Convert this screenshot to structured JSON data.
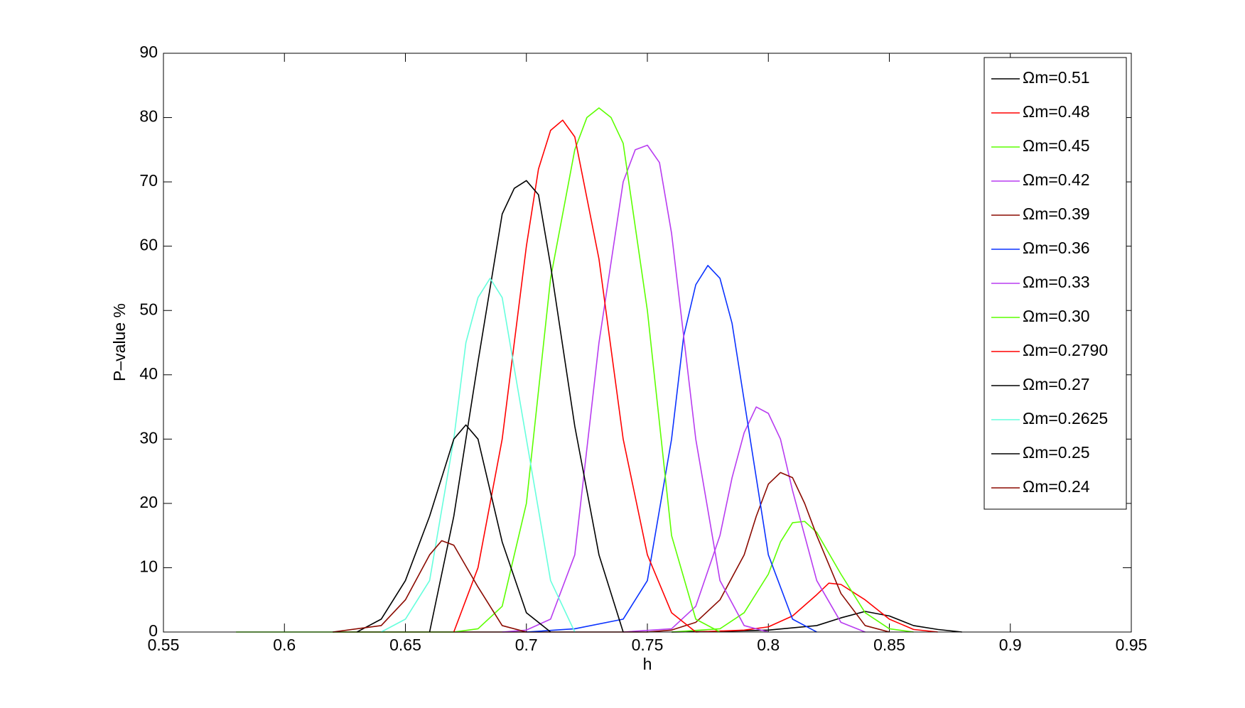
{
  "chart_data": {
    "type": "line",
    "x_label": "h",
    "y_label": "P–value %",
    "xlim": [
      0.55,
      0.95
    ],
    "xticks": [
      0.55,
      0.6,
      0.65,
      0.7,
      0.75,
      0.8,
      0.85,
      0.9,
      0.95
    ],
    "ylim": [
      0,
      90
    ],
    "yticks": [
      0,
      10,
      20,
      30,
      40,
      50,
      60,
      70,
      80,
      90
    ],
    "legend": "upper right",
    "series": [
      {
        "name": "Ωm=0.51",
        "color": "#000000",
        "x": [
          0.76,
          0.78,
          0.8,
          0.82,
          0.83,
          0.84,
          0.85,
          0.86,
          0.87,
          0.88
        ],
        "values": [
          0,
          0.1,
          0.3,
          1,
          2.2,
          3.2,
          2.5,
          1,
          0.4,
          0
        ]
      },
      {
        "name": "Ωm=0.48",
        "color": "#ff0000",
        "x": [
          0.77,
          0.79,
          0.8,
          0.81,
          0.82,
          0.825,
          0.83,
          0.84,
          0.85,
          0.86,
          0.87
        ],
        "values": [
          0,
          0.3,
          0.8,
          2.5,
          5.8,
          7.6,
          7.4,
          5,
          2,
          0.4,
          0
        ]
      },
      {
        "name": "Ωm=0.45",
        "color": "#5cff00",
        "x": [
          0.76,
          0.78,
          0.79,
          0.8,
          0.805,
          0.81,
          0.815,
          0.82,
          0.83,
          0.84,
          0.85,
          0.86
        ],
        "values": [
          0,
          0.5,
          3,
          9,
          14,
          17,
          17.2,
          15.5,
          9,
          3,
          0.5,
          0
        ]
      },
      {
        "name": "Ωm=0.42",
        "color": "#b83cf0",
        "x": [
          0.74,
          0.76,
          0.77,
          0.78,
          0.785,
          0.79,
          0.795,
          0.8,
          0.805,
          0.81,
          0.82,
          0.83,
          0.84
        ],
        "values": [
          0,
          0.5,
          4,
          15,
          24,
          31,
          35,
          34,
          30,
          22,
          8,
          1.5,
          0
        ]
      },
      {
        "name": "Ωm=0.39",
        "color": "#8b0a00",
        "x": [
          0.62,
          0.75,
          0.76,
          0.77,
          0.78,
          0.79,
          0.795,
          0.8,
          0.805,
          0.81,
          0.815,
          0.82,
          0.83,
          0.84,
          0.85
        ],
        "values": [
          0,
          0,
          0.3,
          1.5,
          5,
          12,
          18,
          23,
          24.8,
          24,
          20,
          15,
          6,
          1,
          0
        ]
      },
      {
        "name": "Ωm=0.36",
        "color": "#0a32ff",
        "x": [
          0.7,
          0.72,
          0.74,
          0.75,
          0.76,
          0.765,
          0.77,
          0.775,
          0.78,
          0.785,
          0.79,
          0.8,
          0.81,
          0.82
        ],
        "values": [
          0,
          0.5,
          2,
          8,
          30,
          46,
          54,
          57,
          55,
          48,
          36,
          12,
          2,
          0
        ]
      },
      {
        "name": "Ωm=0.33",
        "color": "#b83cf0",
        "x": [
          0.69,
          0.7,
          0.71,
          0.72,
          0.73,
          0.74,
          0.745,
          0.75,
          0.755,
          0.76,
          0.77,
          0.78,
          0.79,
          0.8
        ],
        "values": [
          0,
          0.3,
          2,
          12,
          45,
          70,
          75,
          75.7,
          73,
          62,
          30,
          8,
          1,
          0
        ]
      },
      {
        "name": "Ωm=0.30",
        "color": "#5cff00",
        "x": [
          0.58,
          0.67,
          0.68,
          0.69,
          0.7,
          0.71,
          0.72,
          0.725,
          0.73,
          0.735,
          0.74,
          0.75,
          0.76,
          0.77,
          0.78
        ],
        "values": [
          0,
          0,
          0.5,
          4,
          20,
          55,
          75,
          80,
          81.5,
          80,
          76,
          50,
          15,
          2,
          0
        ]
      },
      {
        "name": "Ωm=0.2790",
        "color": "#ff0000",
        "x": [
          0.67,
          0.68,
          0.69,
          0.7,
          0.705,
          0.71,
          0.715,
          0.72,
          0.73,
          0.74,
          0.75,
          0.76,
          0.77
        ],
        "values": [
          0,
          10,
          30,
          60,
          72,
          78,
          79.6,
          77,
          58,
          30,
          12,
          3,
          0
        ]
      },
      {
        "name": "Ωm=0.27",
        "color": "#000000",
        "x": [
          0.66,
          0.67,
          0.68,
          0.69,
          0.695,
          0.7,
          0.705,
          0.71,
          0.72,
          0.73,
          0.74
        ],
        "values": [
          0,
          18,
          42,
          65,
          69,
          70.2,
          68,
          57,
          32,
          12,
          0
        ]
      },
      {
        "name": "Ωm=0.2625",
        "color": "#66ffdd",
        "x": [
          0.64,
          0.65,
          0.66,
          0.67,
          0.675,
          0.68,
          0.685,
          0.69,
          0.7,
          0.71,
          0.72
        ],
        "values": [
          0,
          2,
          8,
          30,
          45,
          52,
          55,
          52,
          30,
          8,
          0
        ]
      },
      {
        "name": "Ωm=0.25",
        "color": "#000000",
        "x": [
          0.63,
          0.64,
          0.65,
          0.66,
          0.67,
          0.675,
          0.68,
          0.69,
          0.7,
          0.71
        ],
        "values": [
          0,
          2,
          8,
          18,
          30,
          32.2,
          30,
          14,
          3,
          0
        ]
      },
      {
        "name": "Ωm=0.24",
        "color": "#8b0a00",
        "x": [
          0.62,
          0.64,
          0.65,
          0.66,
          0.665,
          0.67,
          0.68,
          0.69,
          0.7
        ],
        "values": [
          0,
          1,
          5,
          12,
          14.2,
          13.5,
          7,
          1,
          0
        ]
      }
    ]
  }
}
